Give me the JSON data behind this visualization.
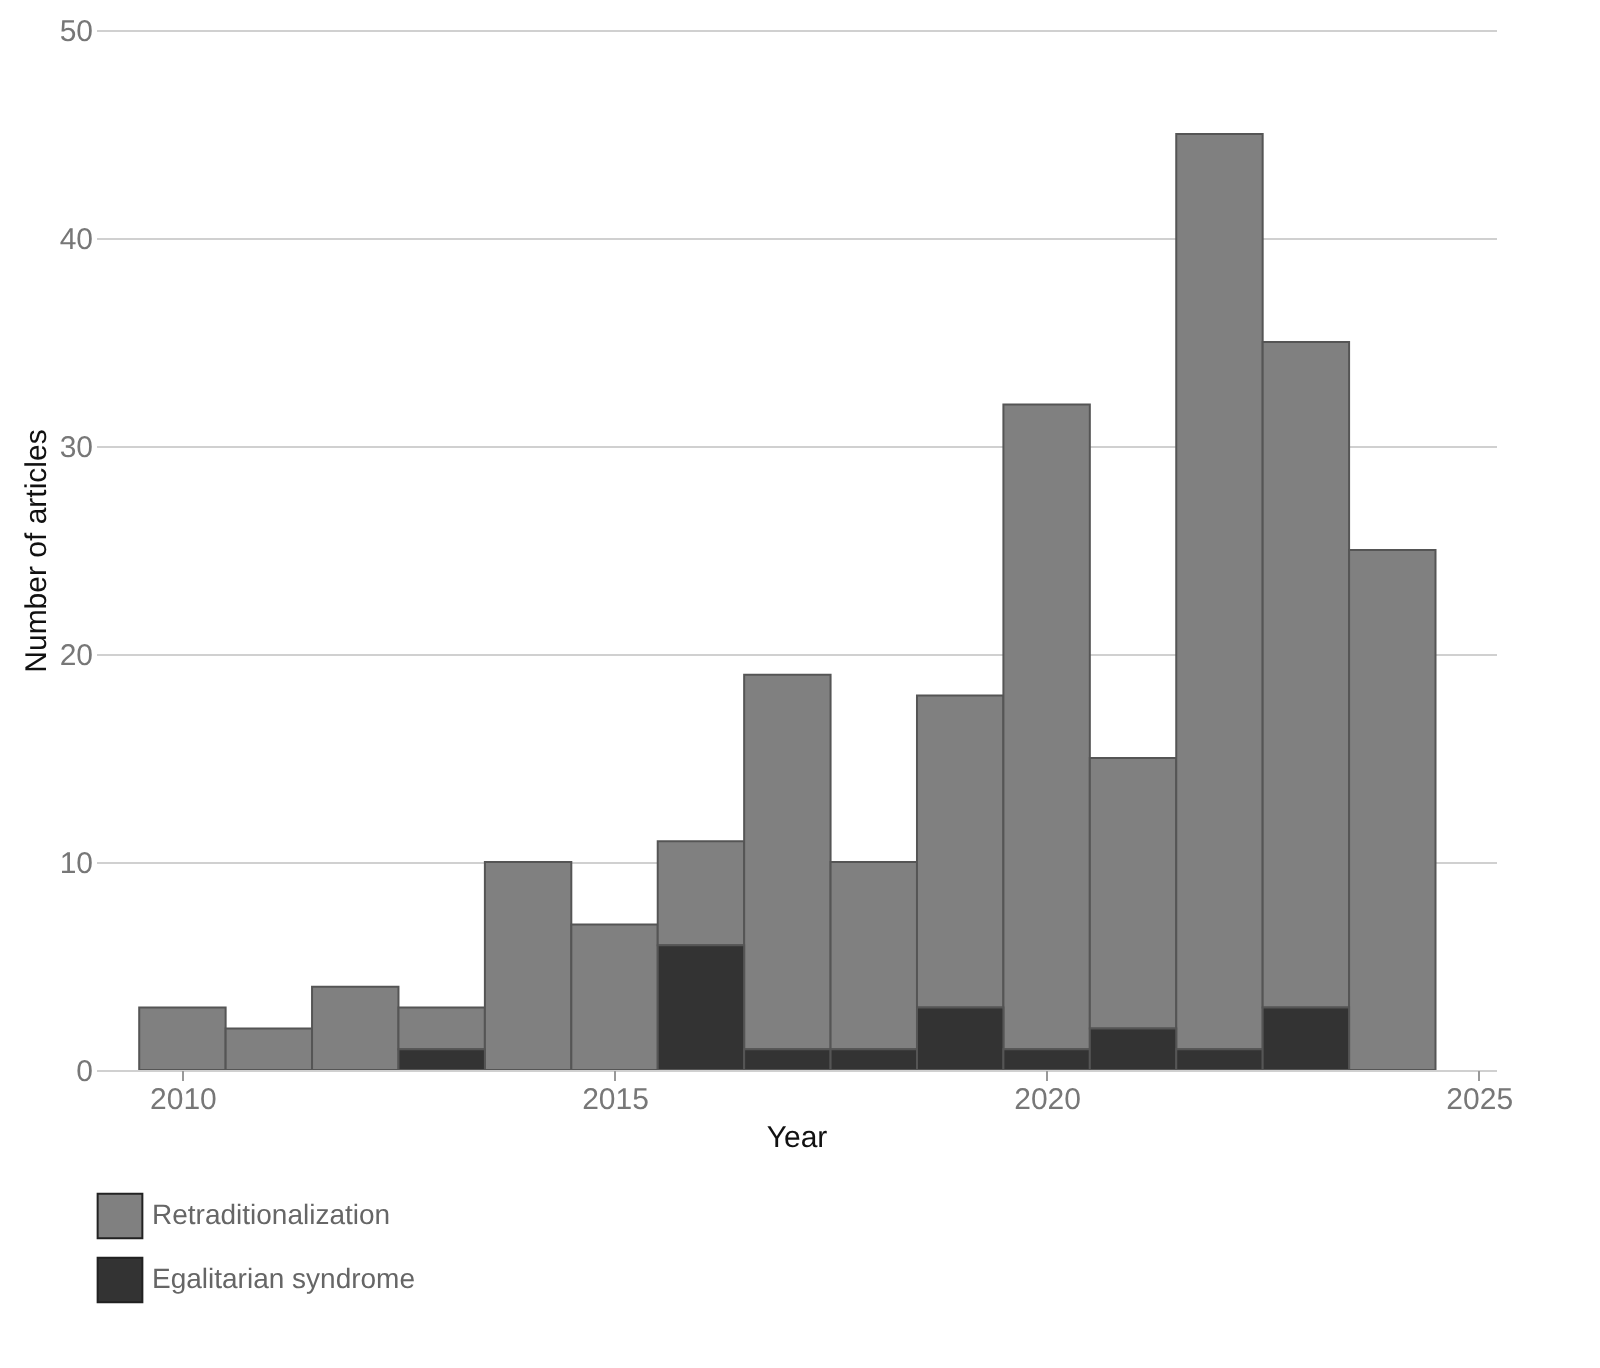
{
  "chart_data": {
    "type": "bar",
    "stacked": true,
    "xlabel": "Year",
    "ylabel": "Number of articles",
    "x": [
      2010,
      2011,
      2012,
      2013,
      2014,
      2015,
      2016,
      2017,
      2018,
      2019,
      2020,
      2021,
      2022,
      2023,
      2024
    ],
    "series": [
      {
        "name": "Egalitarian syndrome",
        "color": "#333333",
        "values": [
          null,
          null,
          null,
          1,
          null,
          null,
          6,
          1,
          1,
          3,
          1,
          2,
          1,
          3,
          null
        ]
      },
      {
        "name": "Retraditionalization",
        "color": "#808080",
        "values": [
          3,
          2,
          4,
          2,
          10,
          7,
          5,
          18,
          9,
          15,
          31,
          13,
          44,
          32,
          25
        ]
      }
    ],
    "xlim": [
      2009,
      2025.2
    ],
    "xticks": [
      2010,
      2015,
      2020,
      2025
    ],
    "ylim": [
      0,
      50
    ],
    "yticks": [
      0,
      10,
      20,
      30,
      40,
      50
    ],
    "grid": "y",
    "legend": "bottom"
  }
}
